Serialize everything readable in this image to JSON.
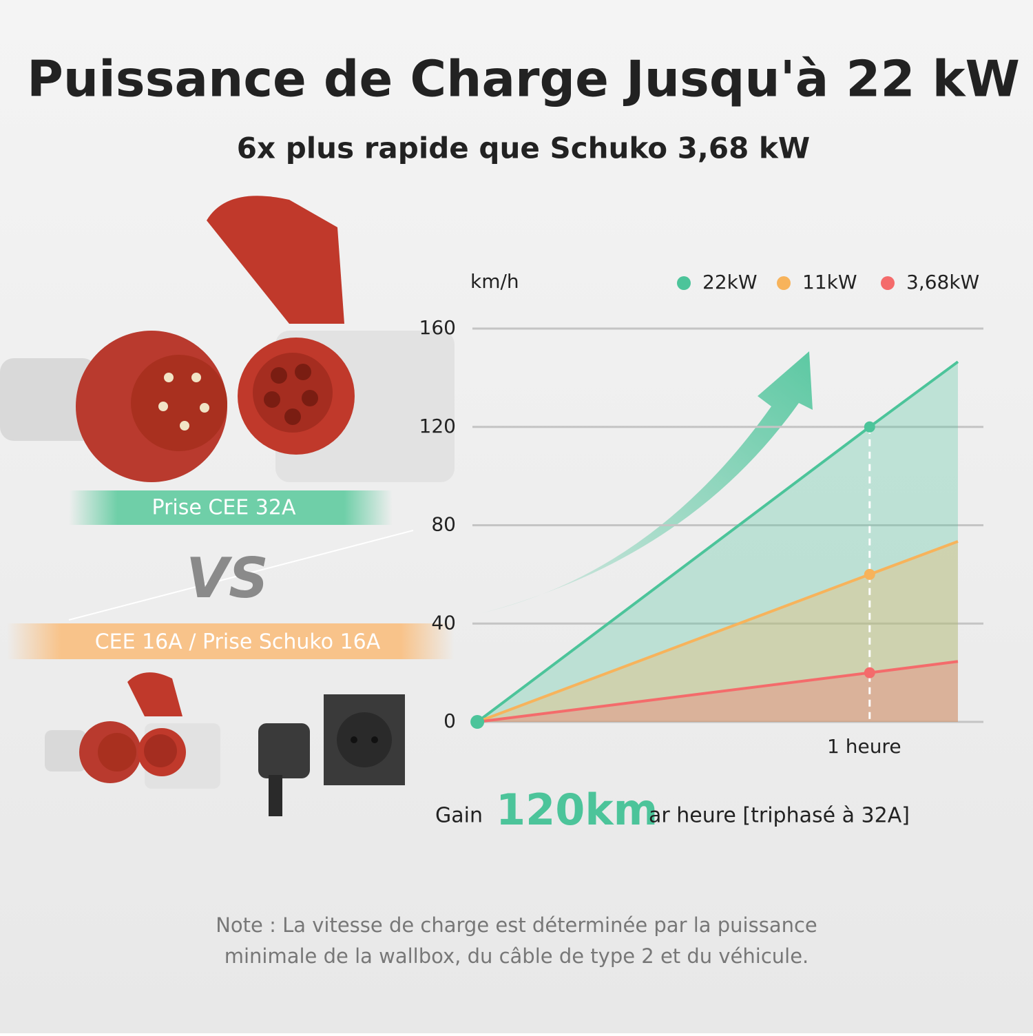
{
  "title": "Puissance de Charge Jusqu'à 22 kW",
  "subtitle": "6x plus rapide que Schuko 3,68 kW",
  "labels": {
    "cee32": "Prise CEE 32A",
    "vs": "VS",
    "cee16": "CEE 16A / Prise Schuko 16A"
  },
  "gain": {
    "prefix": "Gain",
    "highlight": "120km",
    "suffix": "ar heure [triphasé à 32A]"
  },
  "note": [
    "Note : La vitesse de charge est déterminée par la puissance",
    "minimale de la wallbox, du câble de type 2 et du véhicule."
  ],
  "chart_data": {
    "type": "line",
    "y_label": "km/h",
    "x": [
      0,
      1,
      1.225
    ],
    "xlim": [
      -0.0125,
      1.29
    ],
    "xticks": [
      {
        "value": 1,
        "label": "1 heure"
      }
    ],
    "ylim": [
      0,
      160
    ],
    "yticks": [
      0,
      40,
      80,
      120,
      160
    ],
    "grid": true,
    "legend": "top-right",
    "series": [
      {
        "name": "22kW",
        "color": "#4cc49a",
        "values": [
          0,
          120,
          146.5
        ]
      },
      {
        "name": "11kW",
        "color": "#f7b35b",
        "values": [
          0,
          60,
          73.4
        ]
      },
      {
        "name": "3,68kW",
        "color": "#f46b6b",
        "values": [
          0,
          20,
          24.6
        ]
      }
    ]
  }
}
